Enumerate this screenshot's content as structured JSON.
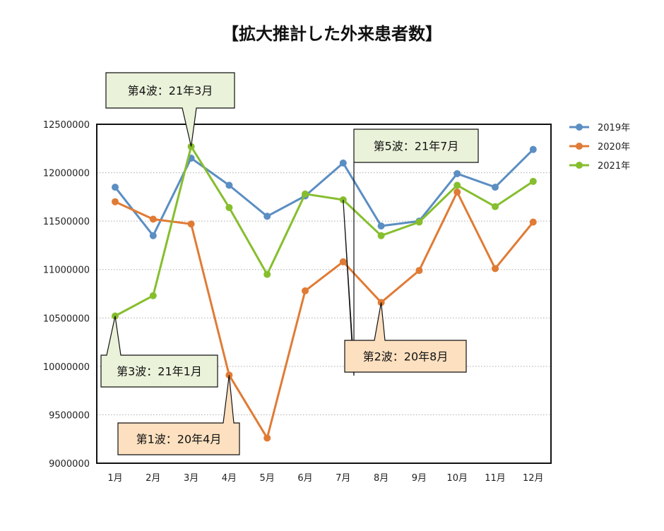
{
  "chart_data": {
    "type": "line",
    "title": "【拡大推計した外来患者数】",
    "xlabel": "",
    "ylabel": "",
    "ylim": [
      9000000,
      12500000
    ],
    "yticks": [
      9000000,
      9500000,
      10000000,
      10500000,
      11000000,
      11500000,
      12000000,
      12500000
    ],
    "grid": "horizontal-dotted",
    "legend_position": "right",
    "categories": [
      "1月",
      "2月",
      "3月",
      "4月",
      "5月",
      "6月",
      "7月",
      "8月",
      "9月",
      "10月",
      "11月",
      "12月"
    ],
    "series": [
      {
        "name": "2019年",
        "color": "#5B8EC2",
        "values": [
          11850000,
          11350000,
          12150000,
          11870000,
          11550000,
          11760000,
          12100000,
          11450000,
          11500000,
          11990000,
          11850000,
          12240000
        ]
      },
      {
        "name": "2020年",
        "color": "#E07B35",
        "values": [
          11700000,
          11520000,
          11470000,
          9910000,
          9260000,
          10780000,
          11080000,
          10660000,
          10990000,
          11800000,
          11010000,
          11490000
        ]
      },
      {
        "name": "2021年",
        "color": "#86BE2E",
        "values": [
          10520000,
          10730000,
          12270000,
          11640000,
          10950000,
          11780000,
          11720000,
          11350000,
          11490000,
          11870000,
          11650000,
          11910000
        ]
      }
    ],
    "annotations": [
      {
        "text": "第4波：21年3月",
        "series": 2,
        "index": 2,
        "style": "green"
      },
      {
        "text": "第5波：21年7月",
        "series": 2,
        "index": 6,
        "style": "green"
      },
      {
        "text": "第3波：21年1月",
        "series": 2,
        "index": 0,
        "style": "green"
      },
      {
        "text": "第1波：20年4月",
        "series": 1,
        "index": 3,
        "style": "orange"
      },
      {
        "text": "第2波：20年8月",
        "series": 1,
        "index": 7,
        "style": "orange"
      }
    ]
  },
  "callout_colors": {
    "green_fill": "#EAF3DA",
    "orange_fill": "#FCE0C0"
  }
}
